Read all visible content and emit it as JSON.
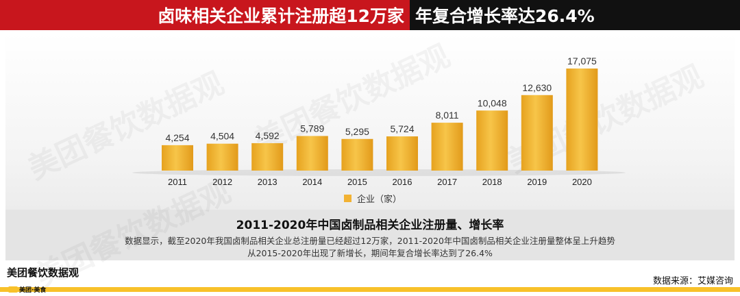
{
  "header": {
    "title_left": "卤味相关企业累计注册超12万家",
    "title_right": "年复合增长率达26.4%"
  },
  "chart_data": {
    "type": "bar",
    "categories": [
      "2011",
      "2012",
      "2013",
      "2014",
      "2015",
      "2016",
      "2017",
      "2018",
      "2019",
      "2020"
    ],
    "series": [
      {
        "name": "企业（家）",
        "values": [
          4254,
          4504,
          4592,
          5789,
          5295,
          5724,
          8011,
          10048,
          12630,
          17075
        ]
      }
    ],
    "value_labels": [
      "4,254",
      "4,504",
      "4,592",
      "5,789",
      "5,295",
      "5,724",
      "8,011",
      "10,048",
      "12,630",
      "17,075"
    ],
    "ylim": [
      0,
      17075
    ],
    "bar_color": "#f2b233",
    "grid": false,
    "legend_position": "bottom-center"
  },
  "legend": {
    "label": "企业（家）"
  },
  "description": {
    "title": "2011-2020年中国卤制品相关企业注册量、增长率",
    "line1": "数据显示，截至2020年我国卤制品相关企业总注册量已经超过12万家，2011-2020年中国卤制品相关企业注册量整体呈上升趋势",
    "line2": "从2015-2020年出现了新增长，期间年复合增长率达到了26.4%"
  },
  "footer": {
    "brand": "美团餐饮数据观",
    "brand_sub": "美团·美食",
    "source": "数据来源：艾媒咨询"
  },
  "watermark": {
    "text": "美团餐饮数据观"
  },
  "colors": {
    "red": "#c8161d",
    "black": "#111111",
    "gold": "#f2b233",
    "footer": "#f8c12a"
  }
}
